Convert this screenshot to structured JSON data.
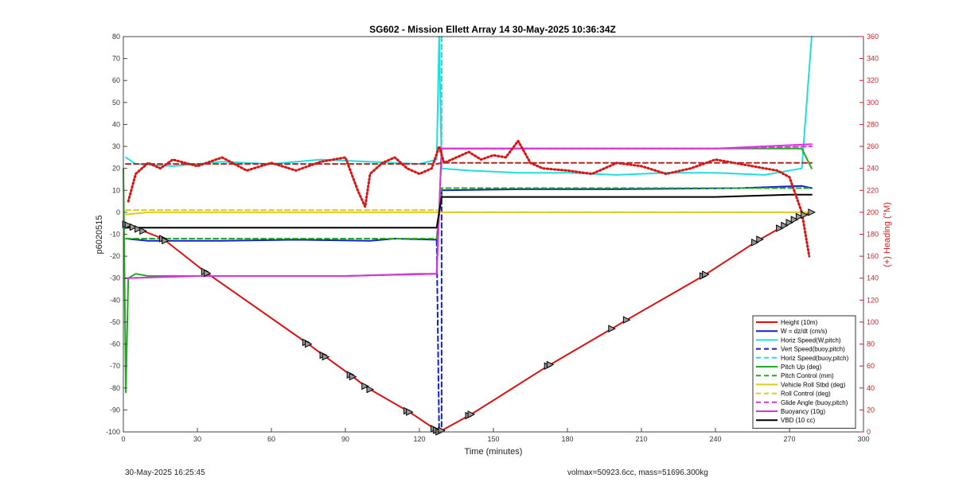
{
  "chart_data": {
    "type": "line",
    "title": "SG602 - Mission Ellett Array 14 30-May-2025 10:36:34Z",
    "xlabel": "Time (minutes)",
    "ylabel": "p6020515",
    "ylabel_right": "(+) Heading (°M)",
    "xlim": [
      0,
      300
    ],
    "ylim": [
      -100,
      80
    ],
    "ylim_right": [
      0,
      360
    ],
    "x_ticks": [
      "0",
      "30",
      "60",
      "90",
      "120",
      "150",
      "180",
      "210",
      "240",
      "270",
      "300"
    ],
    "y_ticks": [
      "-100",
      "-90",
      "-80",
      "-70",
      "-60",
      "-50",
      "-40",
      "-30",
      "-20",
      "-10",
      "0",
      "10",
      "20",
      "30",
      "40",
      "50",
      "60",
      "70",
      "80"
    ],
    "y_ticks_right": [
      "0",
      "20",
      "40",
      "60",
      "80",
      "100",
      "120",
      "140",
      "160",
      "180",
      "200",
      "220",
      "240",
      "260",
      "280",
      "300",
      "320",
      "340",
      "360"
    ],
    "grid": false,
    "legend_position": "bottom-right",
    "series": [
      {
        "name": "Height (10m)",
        "color": "#dd1111",
        "style": "solid",
        "x": [
          0,
          16,
          33,
          75,
          81,
          92,
          99,
          116,
          128,
          141,
          172,
          198,
          204,
          235,
          257,
          268,
          274,
          279
        ],
        "y": [
          -5,
          -12,
          -27,
          -60,
          -65,
          -74,
          -80,
          -91,
          -100,
          -92,
          -70,
          -53,
          -49,
          -29,
          -13,
          -6,
          -2,
          0
        ]
      },
      {
        "name": "W = dz/dt (cm/s)",
        "color": "#1122cc",
        "style": "solid",
        "x": [
          1,
          10,
          40,
          70,
          100,
          110,
          127,
          129,
          160,
          200,
          250,
          275,
          279
        ],
        "y": [
          -12,
          -13,
          -13,
          -12.5,
          -13,
          -12,
          -12.5,
          10,
          10.5,
          10.5,
          11,
          12,
          11
        ]
      },
      {
        "name": "Horiz Speed(W,pitch)",
        "color": "#22dddd",
        "style": "solid",
        "x": [
          1,
          5,
          20,
          40,
          60,
          80,
          100,
          120,
          127,
          128,
          129,
          140,
          160,
          180,
          200,
          220,
          240,
          260,
          275,
          279
        ],
        "y": [
          25,
          22,
          21,
          23,
          22,
          24,
          23,
          22,
          24,
          80,
          20,
          19,
          18,
          18,
          17,
          18,
          18,
          17,
          20,
          80
        ]
      },
      {
        "name": "Vert Speed(buoy,pitch)",
        "color": "#1122cc",
        "style": "dashed",
        "x": [
          127,
          128,
          129,
          129
        ],
        "y": [
          -13,
          -100,
          -100,
          10
        ]
      },
      {
        "name": "Horiz Speed(buoy,pitch)",
        "color": "#22dddd",
        "style": "dashed",
        "x": [
          129,
          129
        ],
        "y": [
          80,
          20
        ]
      },
      {
        "name": "Pitch Up (deg)",
        "color": "#22aa22",
        "style": "solid",
        "x": [
          0,
          1,
          2,
          5,
          10,
          30,
          60,
          90,
          120,
          127,
          129,
          160,
          200,
          240,
          275,
          279
        ],
        "y": [
          20,
          -82,
          -30,
          -28,
          -29,
          -29,
          -29,
          -29,
          -28,
          -28,
          29,
          29,
          29,
          29,
          29,
          20
        ]
      },
      {
        "name": "Pitch Control (mm)",
        "color": "#22aa22",
        "style": "dashed",
        "x": [
          1,
          30,
          60,
          90,
          127,
          129,
          160,
          200,
          240,
          279
        ],
        "y": [
          -12,
          -12,
          -12,
          -12,
          -12,
          11,
          11,
          11,
          11,
          11
        ]
      },
      {
        "name": "Vehicle Roll Stbd (deg)",
        "color": "#ddcc22",
        "style": "solid",
        "x": [
          1,
          10,
          30,
          60,
          90,
          120,
          127,
          129,
          160,
          200,
          240,
          279
        ],
        "y": [
          -1,
          0,
          0,
          0,
          0,
          0,
          0,
          0,
          0,
          0,
          0,
          0
        ]
      },
      {
        "name": "Roll Control (deg)",
        "color": "#ddcc22",
        "style": "dashed",
        "x": [
          1,
          30,
          60,
          90,
          127,
          129,
          160,
          200,
          240,
          279
        ],
        "y": [
          1,
          1,
          1,
          1,
          1,
          0,
          0,
          0,
          0,
          0
        ]
      },
      {
        "name": "Glide Angle (buoy,pitch)",
        "color": "#dd33dd",
        "style": "dashed",
        "x": [
          1,
          30,
          60,
          90,
          127,
          129,
          160,
          200,
          240,
          279
        ],
        "y": [
          -30,
          -29,
          -29,
          -29,
          -28,
          29,
          29,
          29,
          29,
          30
        ]
      },
      {
        "name": "Buoyancy (10g)",
        "color": "#dd33dd",
        "style": "solid",
        "x": [
          1,
          30,
          60,
          90,
          127,
          129,
          160,
          200,
          240,
          279
        ],
        "y": [
          -30,
          -29,
          -29,
          -29,
          -28,
          29,
          29,
          29,
          29,
          31
        ]
      },
      {
        "name": "VBD (10 cc)",
        "color": "#000000",
        "style": "solid",
        "x": [
          1,
          30,
          60,
          90,
          126,
          127,
          129,
          160,
          200,
          240,
          270,
          279
        ],
        "y": [
          -7,
          -7,
          -7,
          -7,
          -7,
          -7,
          7,
          7,
          7,
          7,
          8,
          8
        ]
      },
      {
        "name": "Heading",
        "color": "#dd1111",
        "style": "dotted",
        "axis": "right",
        "x": [
          2,
          5,
          10,
          15,
          20,
          30,
          40,
          50,
          60,
          70,
          80,
          90,
          95,
          98,
          100,
          105,
          110,
          115,
          120,
          125,
          128,
          130,
          135,
          140,
          145,
          150,
          155,
          160,
          165,
          170,
          180,
          190,
          200,
          210,
          220,
          230,
          240,
          250,
          260,
          265,
          270,
          275,
          278
        ],
        "y": [
          210,
          235,
          245,
          240,
          248,
          242,
          250,
          238,
          245,
          238,
          246,
          250,
          220,
          205,
          235,
          245,
          250,
          240,
          235,
          240,
          260,
          245,
          250,
          255,
          248,
          252,
          250,
          265,
          245,
          240,
          238,
          235,
          245,
          242,
          235,
          240,
          248,
          244,
          240,
          238,
          232,
          200,
          160
        ]
      },
      {
        "name": "Heading Control",
        "color": "#bb2222",
        "style": "dashed",
        "axis": "right",
        "x": [
          1,
          127,
          129,
          279
        ],
        "y": [
          244,
          244,
          245,
          245
        ]
      }
    ],
    "legend": [
      "Height (10m)",
      "W = dz/dt (cm/s)",
      "Horiz Speed(W,pitch)",
      "Vert Speed(buoy,pitch)",
      "Horiz Speed(buoy,pitch)",
      "Pitch Up (deg)",
      "Pitch Control (mm)",
      "Vehicle Roll Stbd (deg)",
      "Roll Control (deg)",
      "Glide Angle (buoy,pitch)",
      "Buoyancy (10g)",
      "VBD (10 cc)"
    ],
    "legend_styles": [
      {
        "color": "#dd1111",
        "style": "solid"
      },
      {
        "color": "#1122cc",
        "style": "solid"
      },
      {
        "color": "#22dddd",
        "style": "solid"
      },
      {
        "color": "#1122cc",
        "style": "dashed"
      },
      {
        "color": "#22dddd",
        "style": "dashed"
      },
      {
        "color": "#22aa22",
        "style": "solid"
      },
      {
        "color": "#22aa22",
        "style": "dashed"
      },
      {
        "color": "#ddcc22",
        "style": "solid"
      },
      {
        "color": "#ddcc22",
        "style": "dashed"
      },
      {
        "color": "#dd33dd",
        "style": "dashed"
      },
      {
        "color": "#dd33dd",
        "style": "solid"
      },
      {
        "color": "#000000",
        "style": "solid"
      }
    ],
    "markers": {
      "series": "Height (10m)",
      "x": [
        1,
        2,
        4,
        6,
        8,
        16,
        17,
        33,
        34,
        74,
        75,
        81,
        82,
        92,
        93,
        98,
        100,
        115,
        116,
        126,
        127,
        128,
        129,
        140,
        141,
        172,
        173,
        198,
        204,
        235,
        236,
        256,
        258,
        266,
        268,
        270,
        272,
        274,
        276,
        279
      ]
    }
  },
  "footer": {
    "timestamp": "30-May-2025 16:25:45",
    "summary": "volmax=50923.6cc, mass=51696.300kg"
  }
}
